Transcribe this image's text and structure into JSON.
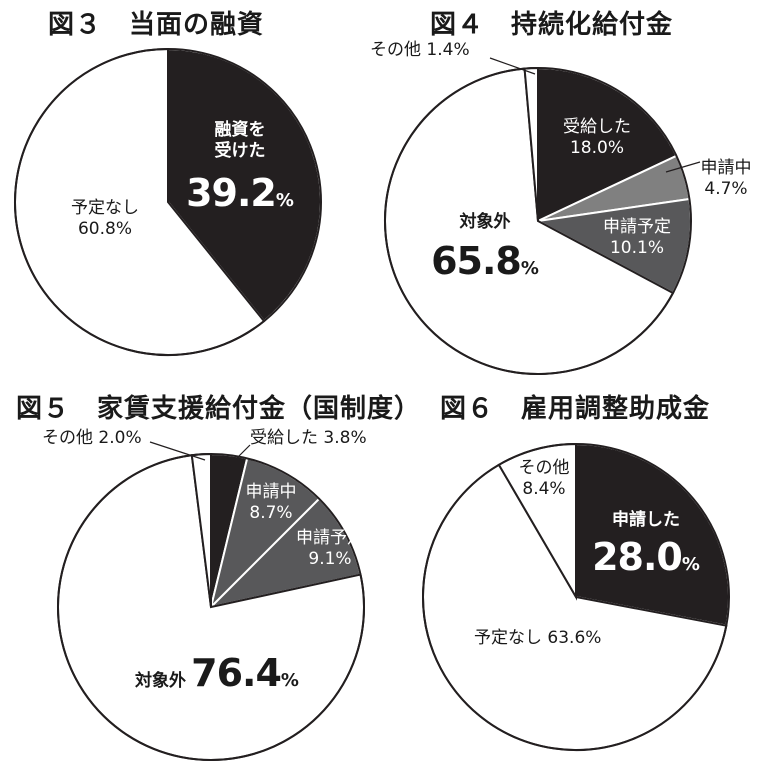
{
  "chart_data": [
    {
      "type": "pie",
      "title": "図３　当面の融資",
      "slices": [
        {
          "label": "融資を受けた",
          "value": 39.2,
          "color": "#231f20"
        },
        {
          "label": "予定なし",
          "value": 60.8,
          "color": "#ffffff"
        }
      ],
      "labels": {
        "received_line1": "融資を",
        "received_line2": "受けた",
        "received_value": "39.2",
        "received_pct": "%",
        "none": "予定なし",
        "none_value": "60.8%"
      }
    },
    {
      "type": "pie",
      "title": "図４　持続化給付金",
      "slices": [
        {
          "label": "受給した",
          "value": 18.0,
          "color": "#231f20"
        },
        {
          "label": "申請中",
          "value": 4.7,
          "color": "#808080"
        },
        {
          "label": "申請予定",
          "value": 10.1,
          "color": "#58585a"
        },
        {
          "label": "対象外",
          "value": 65.8,
          "color": "#ffffff"
        },
        {
          "label": "その他",
          "value": 1.4,
          "color": "#ffffff"
        }
      ],
      "labels": {
        "other": "その他 1.4%",
        "received": "受給した",
        "received_value": "18.0%",
        "applying": "申請中",
        "applying_value": "4.7%",
        "planned": "申請予定",
        "planned_value": "10.1%",
        "na": "対象外",
        "na_value": "65.8",
        "na_pct": "%"
      }
    },
    {
      "type": "pie",
      "title": "図５　家賃支援給付金（国制度）",
      "slices": [
        {
          "label": "受給した",
          "value": 3.8,
          "color": "#231f20"
        },
        {
          "label": "申請中",
          "value": 8.7,
          "color": "#58585a"
        },
        {
          "label": "申請予定",
          "value": 9.1,
          "color": "#58585a"
        },
        {
          "label": "対象外",
          "value": 76.4,
          "color": "#ffffff"
        },
        {
          "label": "その他",
          "value": 2.0,
          "color": "#ffffff"
        }
      ],
      "labels": {
        "other": "その他 2.0%",
        "received": "受給した 3.8%",
        "applying": "申請中",
        "applying_value": "8.7%",
        "planned": "申請予定",
        "planned_value": "9.1%",
        "na": "対象外",
        "na_value": "76.4",
        "na_pct": "%"
      }
    },
    {
      "type": "pie",
      "title": "図６　雇用調整助成金",
      "slices": [
        {
          "label": "申請した",
          "value": 28.0,
          "color": "#231f20"
        },
        {
          "label": "予定なし",
          "value": 63.6,
          "color": "#ffffff"
        },
        {
          "label": "その他",
          "value": 8.4,
          "color": "#ffffff"
        }
      ],
      "labels": {
        "applied": "申請した",
        "applied_value": "28.0",
        "applied_pct": "%",
        "none": "予定なし 63.6%",
        "other": "その他",
        "other_value": "8.4%"
      }
    }
  ]
}
